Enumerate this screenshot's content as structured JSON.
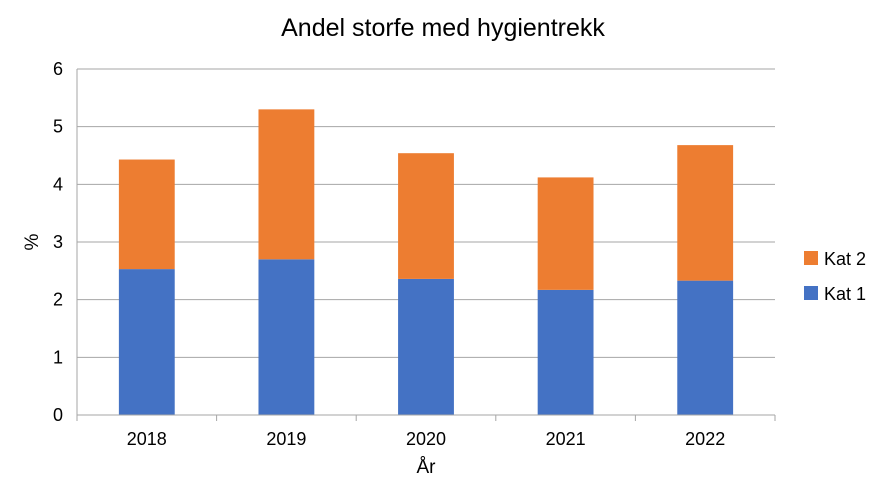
{
  "chart_data": {
    "type": "bar",
    "stacked": true,
    "title": "Andel storfe med hygientrekk",
    "xlabel": "År",
    "ylabel": "%",
    "categories": [
      "2018",
      "2019",
      "2020",
      "2021",
      "2022"
    ],
    "series": [
      {
        "name": "Kat 1",
        "color": "#4472C4",
        "values": [
          2.53,
          2.7,
          2.36,
          2.17,
          2.33
        ]
      },
      {
        "name": "Kat 2",
        "color": "#ED7D31",
        "values": [
          1.9,
          2.6,
          2.18,
          1.95,
          2.35
        ]
      }
    ],
    "ylim": [
      0,
      6
    ],
    "yticks": [
      0,
      1,
      2,
      3,
      4,
      5,
      6
    ],
    "grid": true,
    "legend_position": "right"
  }
}
